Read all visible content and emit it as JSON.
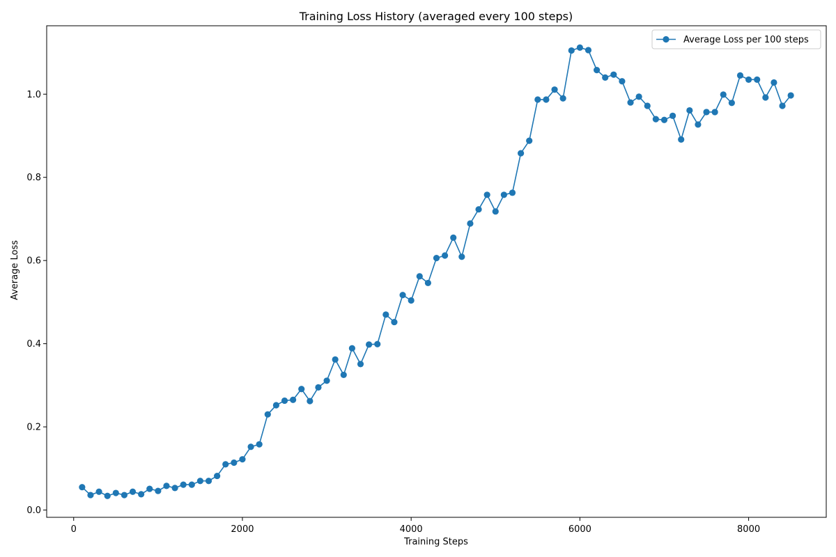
{
  "chart_data": {
    "type": "line",
    "title": "Training Loss History (averaged every 100 steps)",
    "xlabel": "Training Steps",
    "ylabel": "Average Loss",
    "xlim": [
      -320,
      8920
    ],
    "ylim": [
      -0.0175,
      1.1645
    ],
    "xticks": [
      0,
      2000,
      4000,
      6000,
      8000
    ],
    "yticks": [
      0.0,
      0.2,
      0.4,
      0.6,
      0.8,
      1.0
    ],
    "xtick_labels": [
      "0",
      "2000",
      "4000",
      "6000",
      "8000"
    ],
    "ytick_labels": [
      "0.0",
      "0.2",
      "0.4",
      "0.6",
      "0.8",
      "1.0"
    ],
    "grid": false,
    "legend_position": "upper right",
    "color": "#1f77b4",
    "series": [
      {
        "name": "Average Loss per 100 steps",
        "marker": "circle",
        "x": [
          100,
          200,
          300,
          400,
          500,
          600,
          700,
          800,
          900,
          1000,
          1100,
          1200,
          1300,
          1400,
          1500,
          1600,
          1700,
          1800,
          1900,
          2000,
          2100,
          2200,
          2300,
          2400,
          2500,
          2600,
          2700,
          2800,
          2900,
          3000,
          3100,
          3200,
          3300,
          3400,
          3500,
          3600,
          3700,
          3800,
          3900,
          4000,
          4100,
          4200,
          4300,
          4400,
          4500,
          4600,
          4700,
          4800,
          4900,
          5000,
          5100,
          5200,
          5300,
          5400,
          5500,
          5600,
          5700,
          5800,
          5900,
          6000,
          6100,
          6200,
          6300,
          6400,
          6500,
          6600,
          6700,
          6800,
          6900,
          7000,
          7100,
          7200,
          7300,
          7400,
          7500,
          7600,
          7700,
          7800,
          7900,
          8000,
          8100,
          8200,
          8300,
          8400,
          8500
        ],
        "y": [
          0.055,
          0.036,
          0.044,
          0.034,
          0.041,
          0.036,
          0.044,
          0.038,
          0.051,
          0.046,
          0.058,
          0.053,
          0.061,
          0.061,
          0.07,
          0.07,
          0.082,
          0.11,
          0.114,
          0.122,
          0.152,
          0.158,
          0.23,
          0.252,
          0.263,
          0.265,
          0.291,
          0.262,
          0.295,
          0.311,
          0.362,
          0.325,
          0.389,
          0.351,
          0.398,
          0.399,
          0.47,
          0.452,
          0.517,
          0.504,
          0.562,
          0.546,
          0.606,
          0.612,
          0.655,
          0.609,
          0.689,
          0.723,
          0.758,
          0.718,
          0.758,
          0.763,
          0.858,
          0.888,
          0.987,
          0.987,
          1.011,
          0.99,
          1.105,
          1.112,
          1.106,
          1.058,
          1.04,
          1.047,
          1.031,
          0.98,
          0.994,
          0.972,
          0.94,
          0.938,
          0.948,
          0.891,
          0.961,
          0.927,
          0.957,
          0.957,
          0.999,
          0.979,
          1.045,
          1.035,
          1.035,
          0.992,
          1.028,
          0.972,
          0.997
        ]
      }
    ]
  }
}
